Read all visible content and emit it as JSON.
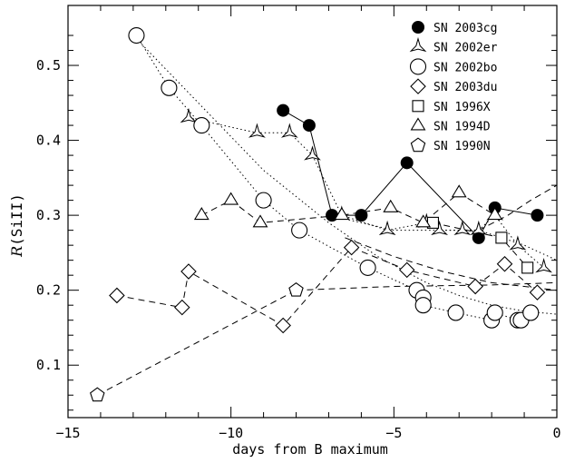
{
  "chart_data": {
    "type": "scatter",
    "xlabel": "days from B maximum",
    "ylabel_main": "R",
    "ylabel_paren": "(SiII)",
    "xlim": [
      -15,
      0
    ],
    "ylim": [
      0.03,
      0.58
    ],
    "x_major_ticks": [
      -15,
      -10,
      -5,
      0
    ],
    "x_tick_labels": [
      "−15",
      "−10",
      "−5",
      "0"
    ],
    "y_major_ticks": [
      0.1,
      0.2,
      0.3,
      0.4,
      0.5
    ],
    "y_tick_labels": [
      "0.1",
      "0.2",
      "0.3",
      "0.4",
      "0.5"
    ],
    "legend_position": "top-right",
    "series": [
      {
        "name": "SN 2003cg",
        "marker": "filled-circle",
        "line": "solid",
        "points": [
          [
            -8.4,
            0.44
          ],
          [
            -7.6,
            0.42
          ],
          [
            -6.9,
            0.3
          ],
          [
            -6.0,
            0.3
          ],
          [
            -4.6,
            0.37
          ],
          [
            -2.4,
            0.27
          ],
          [
            -1.9,
            0.31
          ],
          [
            -0.6,
            0.3
          ]
        ]
      },
      {
        "name": "SN 2002er",
        "marker": "tripod",
        "line": "dotted",
        "points": [
          [
            -11.3,
            0.43
          ],
          [
            -9.2,
            0.41
          ],
          [
            -8.2,
            0.41
          ],
          [
            -7.5,
            0.38
          ],
          [
            -6.6,
            0.3
          ],
          [
            -5.2,
            0.28
          ],
          [
            -4.0,
            0.29
          ],
          [
            -3.6,
            0.28
          ],
          [
            -2.9,
            0.28
          ],
          [
            -2.4,
            0.28
          ],
          [
            -1.9,
            0.3
          ],
          [
            -1.2,
            0.26
          ],
          [
            -0.4,
            0.23
          ]
        ]
      },
      {
        "name": "SN 2002bo",
        "marker": "open-circle",
        "line": "dotted",
        "points": [
          [
            -12.9,
            0.54
          ],
          [
            -11.9,
            0.47
          ],
          [
            -10.9,
            0.42
          ],
          [
            -9.0,
            0.32
          ],
          [
            -7.9,
            0.28
          ],
          [
            -5.8,
            0.23
          ],
          [
            -4.3,
            0.2
          ],
          [
            -4.1,
            0.19
          ],
          [
            -4.1,
            0.18
          ],
          [
            -3.1,
            0.17
          ],
          [
            -2.0,
            0.16
          ],
          [
            -1.9,
            0.17
          ],
          [
            -1.2,
            0.16
          ],
          [
            -1.1,
            0.16
          ],
          [
            -0.8,
            0.17
          ]
        ]
      },
      {
        "name": "SN 2003du",
        "marker": "open-diamond",
        "line": "dashed",
        "points": [
          [
            -13.5,
            0.193
          ],
          [
            -11.5,
            0.177
          ],
          [
            -11.3,
            0.225
          ],
          [
            -8.4,
            0.153
          ],
          [
            -6.3,
            0.257
          ],
          [
            -4.6,
            0.227
          ],
          [
            -2.5,
            0.205
          ],
          [
            -1.6,
            0.235
          ],
          [
            -0.6,
            0.197
          ]
        ]
      },
      {
        "name": "SN 1996X",
        "marker": "open-square",
        "line": "dashed",
        "points": [
          [
            -3.8,
            0.29
          ],
          [
            -1.7,
            0.27
          ],
          [
            -0.9,
            0.23
          ]
        ]
      },
      {
        "name": "SN 1994D",
        "marker": "open-triangle",
        "line": "dashed",
        "points": [
          [
            -10.9,
            0.3
          ],
          [
            -10.0,
            0.32
          ],
          [
            -9.1,
            0.29
          ],
          [
            -6.6,
            0.3
          ],
          [
            -5.1,
            0.31
          ],
          [
            -4.1,
            0.29
          ],
          [
            -3.0,
            0.33
          ],
          [
            -1.9,
            0.3
          ]
        ]
      },
      {
        "name": "SN 1990N",
        "marker": "open-pentagon",
        "line": "dashed",
        "points": [
          [
            -14.1,
            0.06
          ],
          [
            -8.0,
            0.2
          ]
        ]
      }
    ],
    "fit_curves": [
      {
        "style": "dotted",
        "points": [
          [
            -13.0,
            0.54
          ],
          [
            -11.0,
            0.45
          ],
          [
            -9.0,
            0.36
          ],
          [
            -7.0,
            0.29
          ],
          [
            -5.5,
            0.245
          ],
          [
            -4.0,
            0.21
          ],
          [
            -3.0,
            0.193
          ],
          [
            -2.0,
            0.18
          ],
          [
            -1.0,
            0.172
          ],
          [
            0.0,
            0.168
          ]
        ]
      },
      {
        "style": "dotted",
        "points": [
          [
            -7.0,
            0.3
          ],
          [
            -5.0,
            0.28
          ],
          [
            -2.4,
            0.28
          ],
          [
            -1.0,
            0.26
          ],
          [
            0.0,
            0.24
          ]
        ]
      },
      {
        "style": "dashed",
        "points": [
          [
            -6.5,
            0.27
          ],
          [
            -5.0,
            0.245
          ],
          [
            -3.5,
            0.225
          ],
          [
            -2.0,
            0.21
          ],
          [
            -1.0,
            0.205
          ],
          [
            0.0,
            0.2
          ]
        ]
      },
      {
        "style": "dashed",
        "points": [
          [
            -8.0,
            0.2
          ],
          [
            -5.0,
            0.205
          ],
          [
            -2.0,
            0.207
          ],
          [
            0.0,
            0.21
          ]
        ]
      },
      {
        "style": "dashed",
        "points": [
          [
            -2.4,
            0.28
          ],
          [
            -1.5,
            0.3
          ],
          [
            -0.8,
            0.32
          ],
          [
            0.0,
            0.34
          ]
        ]
      }
    ]
  }
}
